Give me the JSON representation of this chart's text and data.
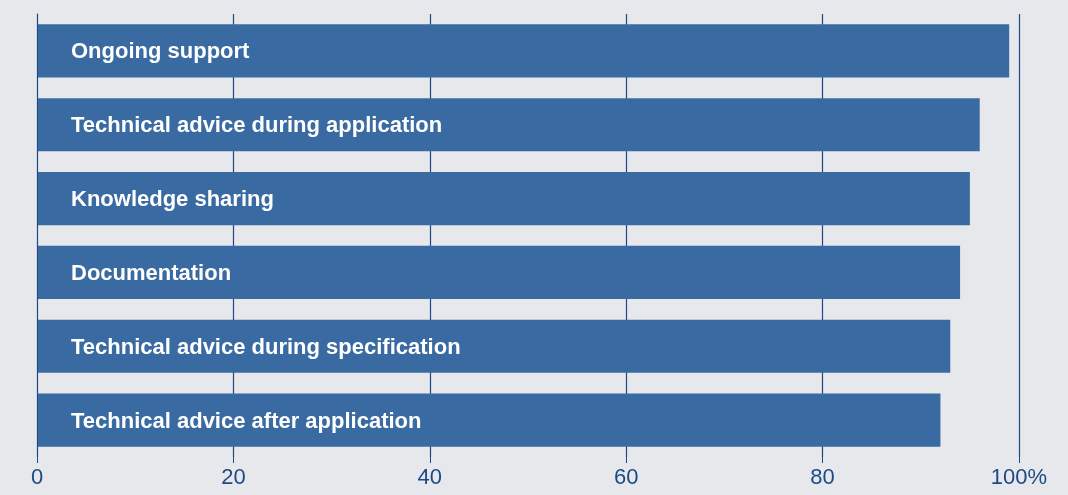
{
  "chart_data": {
    "type": "bar",
    "orientation": "horizontal",
    "categories": [
      "Ongoing support",
      "Technical advice during application",
      "Knowledge sharing",
      "Documentation",
      "Technical advice during specification",
      "Technical advice after application"
    ],
    "series": [
      {
        "color": "#3a6aa2",
        "values": [
          99,
          96,
          95,
          94,
          93,
          92
        ]
      }
    ],
    "xlim": [
      0,
      100
    ],
    "xticks": [
      0,
      20,
      40,
      60,
      80,
      {
        "value": 100,
        "label": "100%"
      }
    ],
    "grid": "x"
  }
}
